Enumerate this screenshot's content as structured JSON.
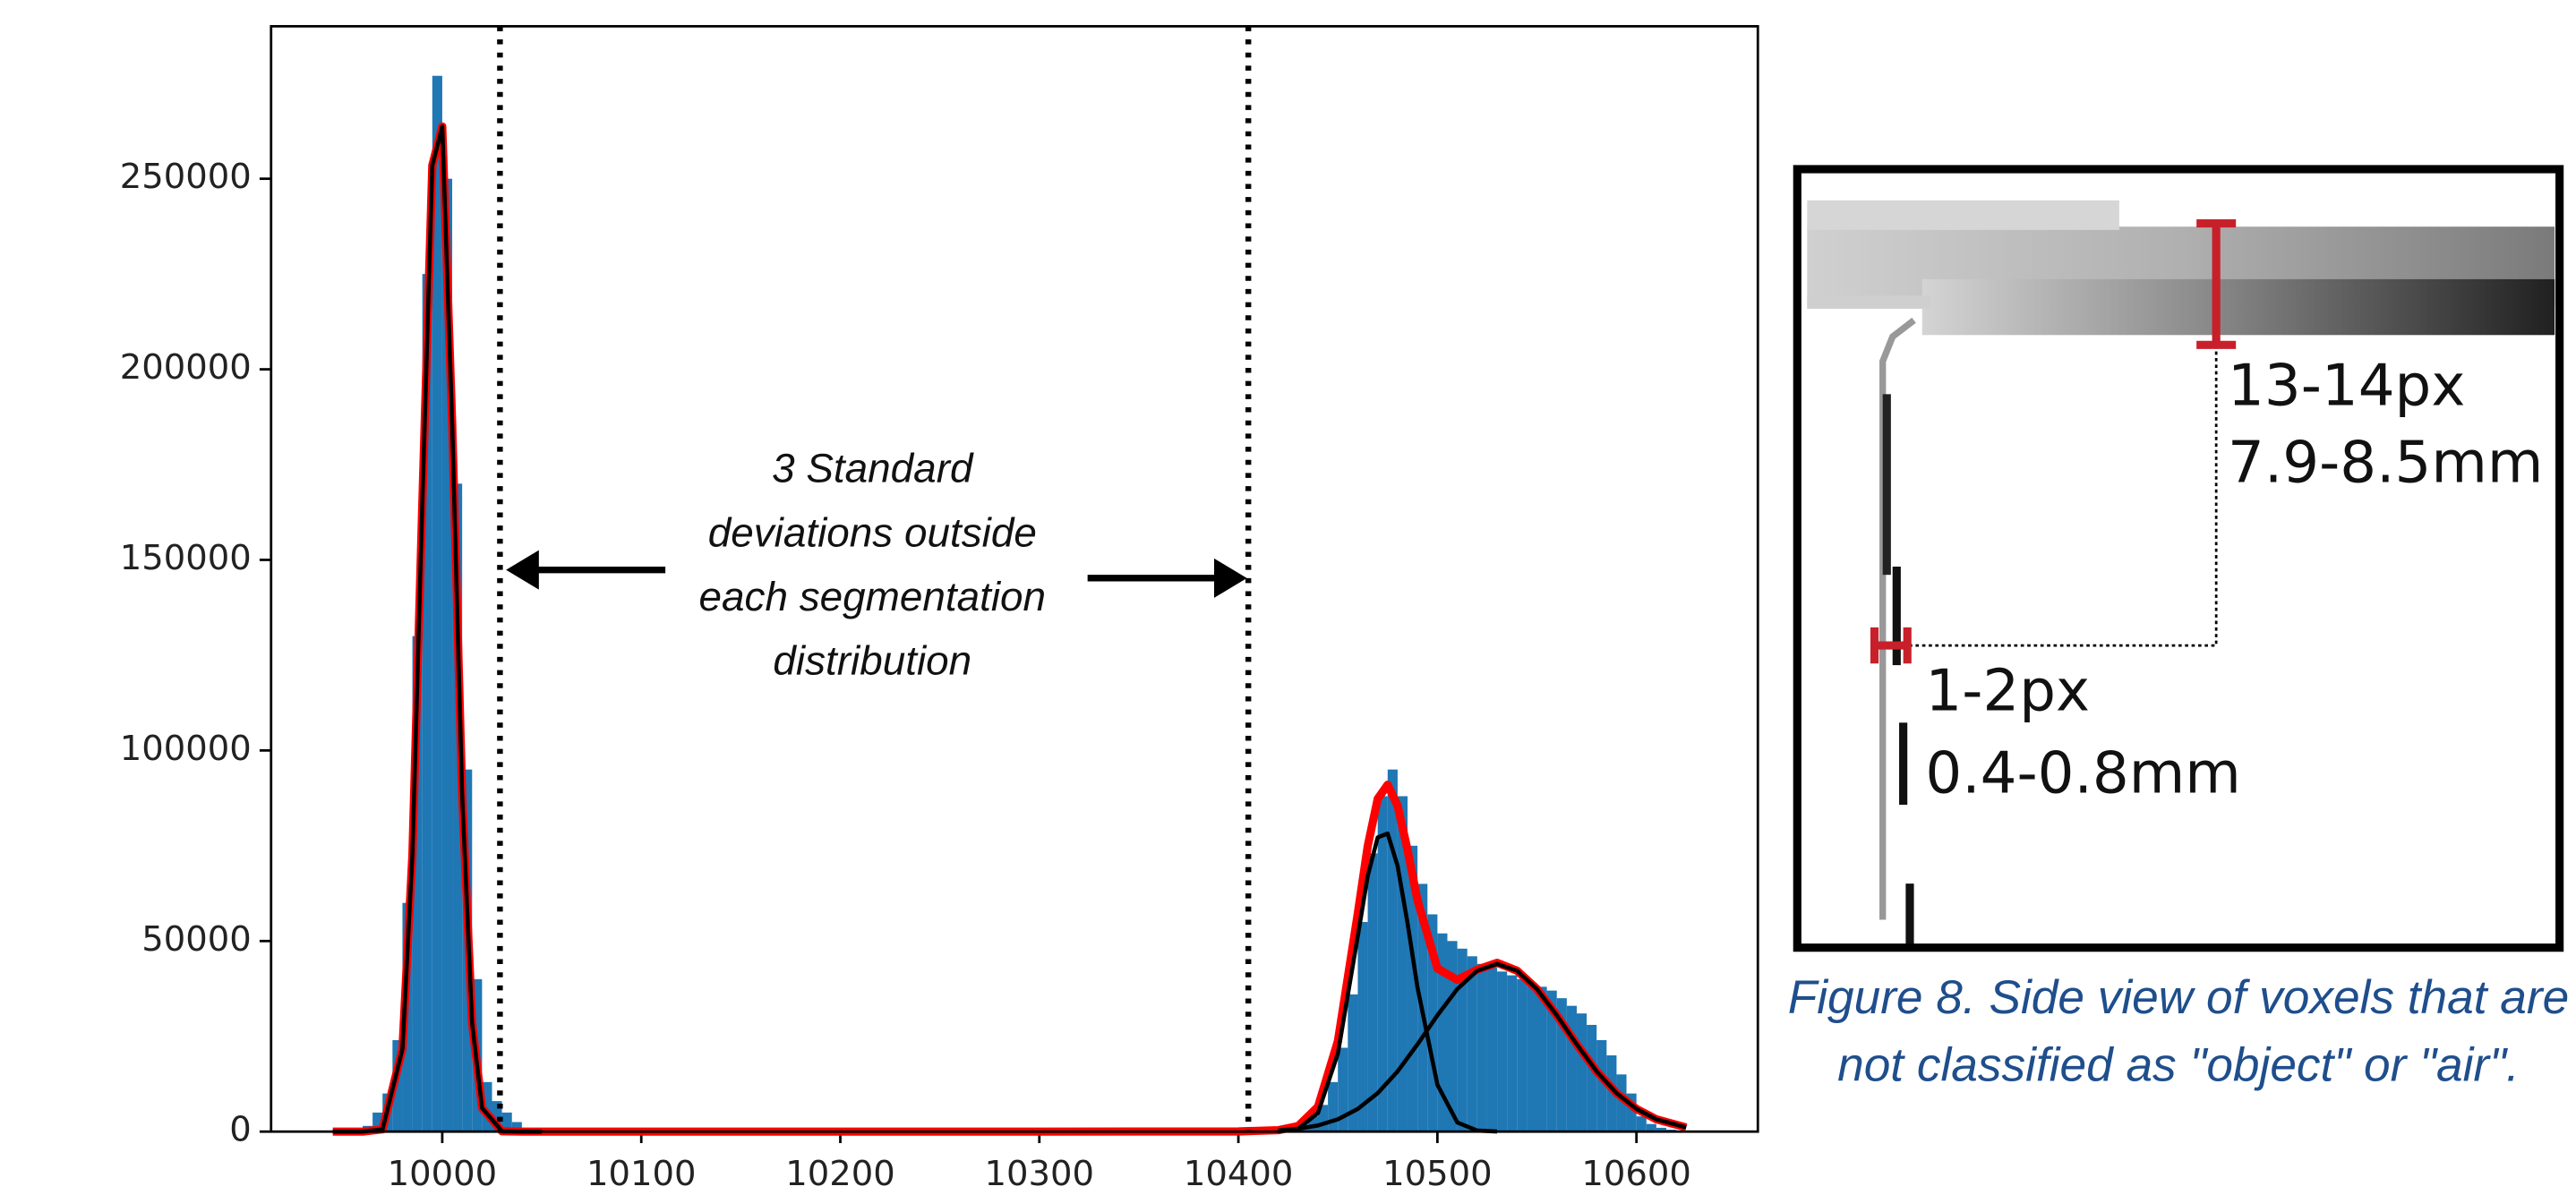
{
  "chart_data": {
    "type": "histogram",
    "bins": [
      9950,
      9955,
      9960,
      9965,
      9970,
      9975,
      9980,
      9985,
      9990,
      9995,
      10000,
      10005,
      10010,
      10015,
      10020,
      10025,
      10030,
      10035,
      10040,
      10045,
      10420,
      10425,
      10430,
      10435,
      10440,
      10445,
      10450,
      10455,
      10460,
      10465,
      10470,
      10475,
      10480,
      10485,
      10490,
      10495,
      10500,
      10505,
      10510,
      10515,
      10520,
      10525,
      10530,
      10535,
      10540,
      10545,
      10550,
      10555,
      10560,
      10565,
      10570,
      10575,
      10580,
      10585,
      10590,
      10595,
      10600,
      10605,
      10610,
      10615,
      10620,
      10625
    ],
    "values": [
      0,
      500,
      1500,
      5000,
      10000,
      24000,
      60000,
      130000,
      225000,
      277000,
      250000,
      170000,
      95000,
      40000,
      13000,
      8000,
      5000,
      2500,
      1000,
      0,
      500,
      1000,
      2000,
      4000,
      7000,
      13000,
      22000,
      36000,
      55000,
      73000,
      88000,
      95000,
      88000,
      75000,
      65000,
      57000,
      52000,
      50000,
      48000,
      46000,
      44000,
      43000,
      42000,
      41000,
      40000,
      39000,
      38000,
      37000,
      35000,
      33000,
      31000,
      28000,
      24000,
      20000,
      15000,
      10000,
      4000,
      2000,
      1000,
      500,
      0
    ],
    "color": "#1f77b4",
    "curves": [
      {
        "color": "#ff0000",
        "x": [
          9945,
          9960,
          9970,
          9980,
          9985,
          9990,
          9995,
          10000,
          10005,
          10010,
          10015,
          10020,
          10030,
          10040,
          10050,
          10100,
          10200,
          10300,
          10400,
          10420,
          10430,
          10440,
          10450,
          10460,
          10465,
          10470,
          10475,
          10480,
          10485,
          10490,
          10500,
          10510,
          10520,
          10530,
          10540,
          10550,
          10560,
          10570,
          10580,
          10590,
          10600,
          10610,
          10625
        ],
        "values": [
          0,
          3,
          600,
          21700,
          72600,
          165000,
          253500,
          263700,
          185500,
          88300,
          28500,
          6200,
          91,
          0,
          0,
          0,
          0,
          0,
          44,
          377,
          1444,
          6510,
          23730,
          57250,
          74940,
          87300,
          91000,
          85500,
          73900,
          60700,
          42800,
          39800,
          42480,
          44280,
          42220,
          37400,
          30500,
          22900,
          15800,
          10100,
          5950,
          3230,
          1100
        ]
      },
      {
        "color": "#000000",
        "x": [
          9945,
          9960,
          9970,
          9980,
          9985,
          9990,
          9995,
          10000,
          10005,
          10010,
          10015,
          10020,
          10030,
          10040,
          10050
        ],
        "values": [
          0,
          3,
          600,
          21700,
          72600,
          165000,
          253500,
          263700,
          185500,
          88300,
          28500,
          6200,
          91,
          0,
          0
        ]
      },
      {
        "color": "#000000",
        "x": [
          10420,
          10430,
          10440,
          10450,
          10460,
          10465,
          10470,
          10475,
          10480,
          10485,
          10490,
          10500,
          10510,
          10520,
          10530
        ],
        "values": [
          61,
          700,
          4900,
          20500,
          51300,
          67100,
          77200,
          78200,
          69700,
          54700,
          37800,
          12300,
          2400,
          280,
          20
        ]
      },
      {
        "color": "#000000",
        "x": [
          10420,
          10430,
          10440,
          10450,
          10460,
          10470,
          10480,
          10490,
          10500,
          10510,
          10520,
          10530,
          10540,
          10550,
          10560,
          10570,
          10580,
          10590,
          10600,
          10610,
          10625
        ],
        "values": [
          316,
          744,
          1610,
          3230,
          5950,
          10100,
          15800,
          22900,
          30500,
          37400,
          42200,
          44000,
          42200,
          37400,
          30500,
          22900,
          15800,
          10100,
          5950,
          3230,
          1100
        ]
      }
    ],
    "vlines": [
      10029,
      10405
    ],
    "annotation": [
      "3 Standard",
      "deviations outside",
      "each segmentation",
      "distribution"
    ],
    "xlim": [
      9914,
      10661
    ],
    "xticks": [
      10000,
      10100,
      10200,
      10300,
      10400,
      10500,
      10600
    ],
    "ylim": [
      0,
      290000
    ],
    "yticks": [
      0,
      50000,
      100000,
      150000,
      200000,
      250000
    ]
  },
  "panel": {
    "top_labels": [
      "13-14px",
      "7.9-8.5mm"
    ],
    "side_labels": [
      "1-2px",
      "0.4-0.8mm"
    ],
    "caption": "Figure 8. Side view of voxels that are not classified as \"object\" or \"air\"."
  }
}
